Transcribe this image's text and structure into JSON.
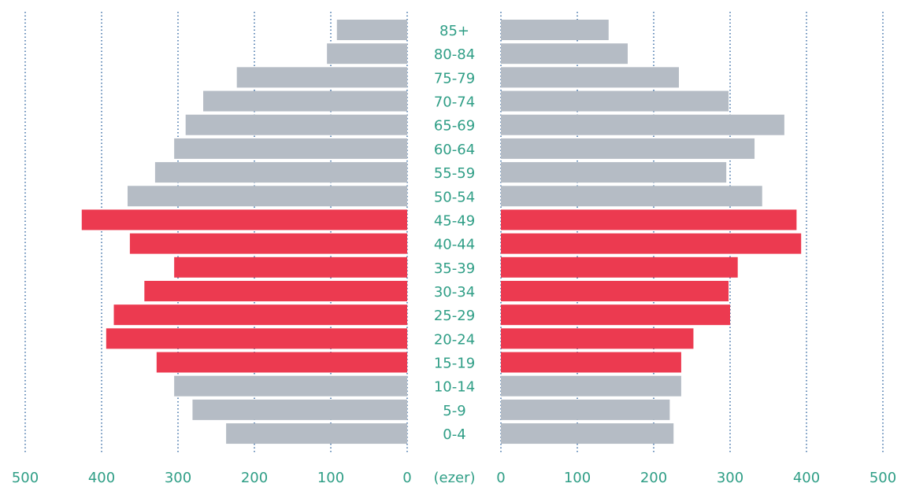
{
  "chart_data": {
    "type": "pyramid",
    "categories": [
      "85+",
      "80-84",
      "75-79",
      "70-74",
      "65-69",
      "60-64",
      "55-59",
      "50-54",
      "45-49",
      "40-44",
      "35-39",
      "30-34",
      "25-29",
      "20-24",
      "15-19",
      "10-14",
      "5-9",
      "0-4"
    ],
    "series": [
      {
        "values": [
          92,
          105,
          223,
          267,
          290,
          305,
          330,
          366,
          426,
          363,
          305,
          344,
          384,
          394,
          328,
          305,
          281,
          237
        ]
      },
      {
        "values": [
          141,
          166,
          233,
          298,
          371,
          332,
          295,
          342,
          387,
          393,
          310,
          298,
          300,
          252,
          236,
          236,
          221,
          226
        ]
      }
    ],
    "bar_colors": [
      "#b5bcc5",
      "#b5bcc5",
      "#b5bcc5",
      "#b5bcc5",
      "#b5bcc5",
      "#b5bcc5",
      "#b5bcc5",
      "#b5bcc5",
      "#ec3a50",
      "#ec3a50",
      "#ec3a50",
      "#ec3a50",
      "#ec3a50",
      "#ec3a50",
      "#ec3a50",
      "#b5bcc5",
      "#b5bcc5",
      "#b5bcc5"
    ],
    "unit_label": "(ezer)",
    "xlim": [
      0,
      500
    ],
    "xticks": [
      0,
      100,
      200,
      300,
      400,
      500
    ],
    "grid": true
  }
}
